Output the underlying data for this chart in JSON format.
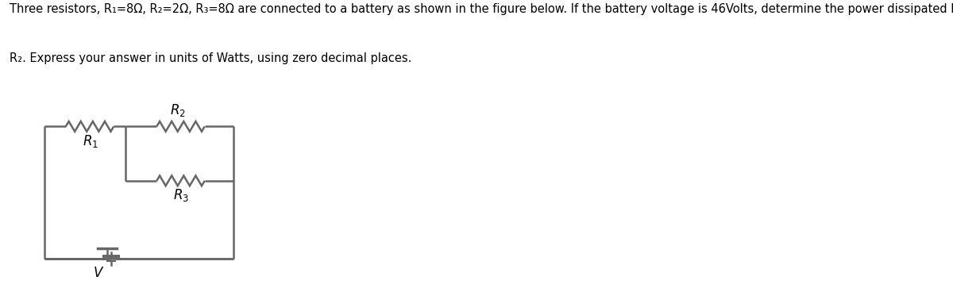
{
  "title_line1": "Three resistors, R₁=8Ω, R₂=2Ω, R₃=8Ω are connected to a battery as shown in the figure below. If the battery voltage is 46Volts, determine the power dissipated by",
  "title_line2": "R₂. Express your answer in units of Watts, using zero decimal places.",
  "title_fontsize": 10.5,
  "bg_color": "#e6e6e6",
  "outer_bg": "#ffffff",
  "line_color": "#666666",
  "label_color": "#000000",
  "fig_width": 12.0,
  "fig_height": 3.68,
  "R1_label": "$R_1$",
  "R2_label": "$R_2$",
  "R3_label": "$R_3$",
  "V_label": "$V$"
}
